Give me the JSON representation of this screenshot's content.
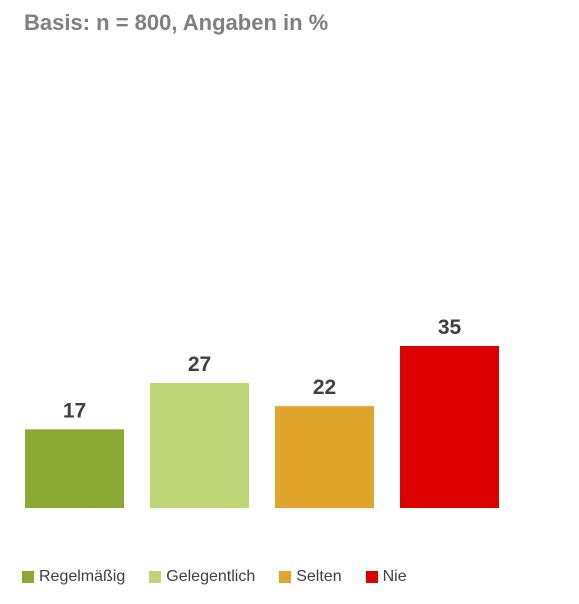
{
  "chart_data": {
    "type": "bar",
    "title": "Basis: n = 800, Angaben in %",
    "categories": [
      "Regelmäßig",
      "Gelegentlich",
      "Selten",
      "Nie"
    ],
    "values": [
      17,
      27,
      22,
      35
    ],
    "colors": [
      "#8aa832",
      "#bfd677",
      "#e0a52a",
      "#dd0000"
    ],
    "ylim": [
      0,
      35
    ],
    "grid": false,
    "legend": "bottom"
  }
}
